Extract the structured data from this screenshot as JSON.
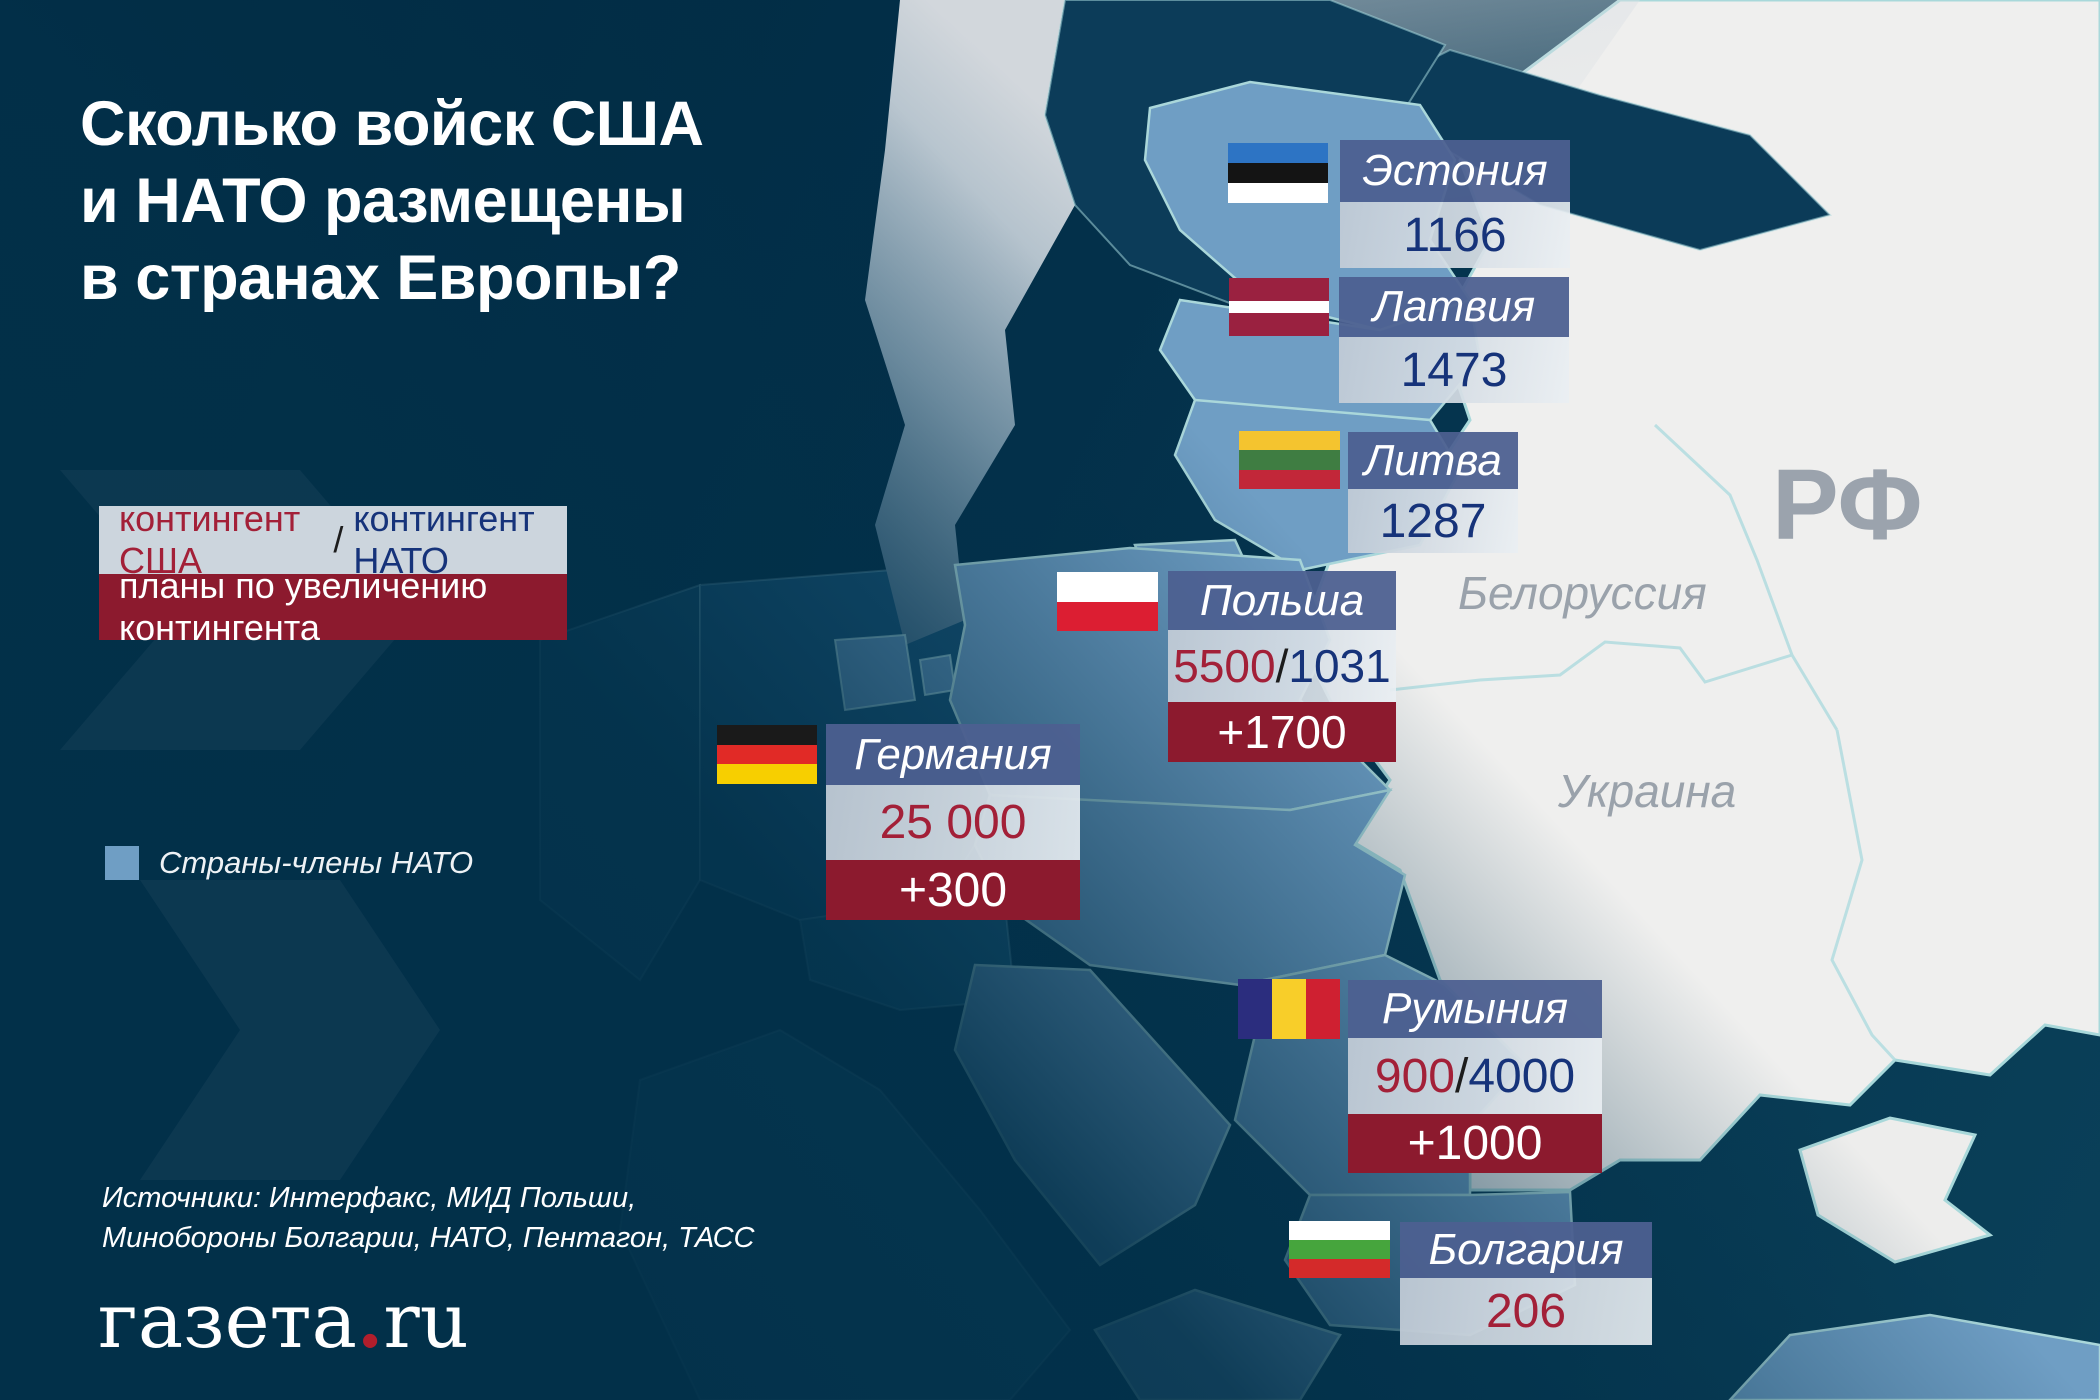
{
  "title": {
    "lines": [
      "Сколько войск США",
      "и НАТО размещены",
      "в странах Европы?"
    ]
  },
  "legend": {
    "us_label": "контингент США",
    "separator": "/",
    "nato_label": "контингент НАТО",
    "plans_label": "планы по увеличению контингента",
    "members_label": "Страны-члены НАТО"
  },
  "countries": [
    {
      "name": "Эстония",
      "nato": "1166"
    },
    {
      "name": "Латвия",
      "nato": "1473"
    },
    {
      "name": "Литва",
      "nato": "1287"
    },
    {
      "name": "Польша",
      "us": "5500",
      "nato": "1031",
      "plans": "+1700"
    },
    {
      "name": "Германия",
      "us": "25 000",
      "plans": "+300"
    },
    {
      "name": "Румыния",
      "us": "900",
      "nato": "4000",
      "plans": "+1000"
    },
    {
      "name": "Болгария",
      "us": "206"
    }
  ],
  "map_labels": {
    "russia": "РФ",
    "belarus": "Белоруссия",
    "ukraine": "Украина"
  },
  "sources": {
    "lines": [
      "Источники: Интерфакс, МИД Польши,",
      "Минобороны Болгарии, НАТО, Пентагон, ТАСС"
    ]
  },
  "logo": {
    "name": "газета",
    "dot": ".",
    "tld": "ru"
  },
  "flags": {
    "estonia": {
      "dir": "h",
      "colors": [
        "#2d74c4",
        "#141414",
        "#ffffff"
      ]
    },
    "latvia": {
      "dir": "h",
      "colors": [
        "#9a2140",
        "#ffffff",
        "#9a2140"
      ],
      "weights": [
        2,
        1,
        2
      ]
    },
    "lithuania": {
      "dir": "h",
      "colors": [
        "#f4c42f",
        "#3f7d42",
        "#c22739"
      ]
    },
    "poland": {
      "dir": "h",
      "colors": [
        "#ffffff",
        "#dc1e32"
      ]
    },
    "germany": {
      "dir": "h",
      "colors": [
        "#1a1a1a",
        "#e12a26",
        "#f7cf00"
      ]
    },
    "romania": {
      "dir": "v",
      "colors": [
        "#2b2d7e",
        "#f8ce29",
        "#cf2031"
      ]
    },
    "bulgaria": {
      "dir": "h",
      "colors": [
        "#ffffff",
        "#46a53d",
        "#d42a2a"
      ]
    }
  },
  "colors": {
    "background": "#03304a",
    "nato_member_blue": "#6f9ec4",
    "non_nato_gray": "#efefee",
    "us_contingent_red": "#a32038",
    "nato_contingent_navy": "#16337a",
    "plans_dark_red": "#8c1a2e",
    "card_title_blue": "#4c6090",
    "map_label_gray": "#9aa2ab",
    "border_teal": "#a9d6da"
  }
}
